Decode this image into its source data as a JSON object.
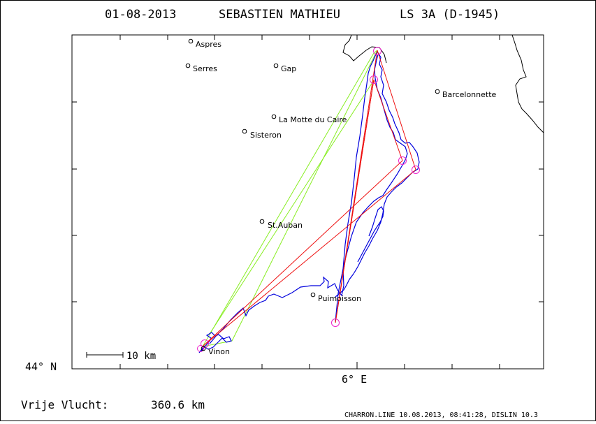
{
  "header": {
    "date": "01-08-2013",
    "pilot": "SEBASTIEN MATHIEU",
    "glider": "LS 3A (D-1945)"
  },
  "map": {
    "lat_label": "44° N",
    "lon_label": "6° E",
    "scale_label": "10 km",
    "towns": [
      {
        "name": "Aspres"
      },
      {
        "name": "Serres"
      },
      {
        "name": "Gap"
      },
      {
        "name": "Barcelonnette"
      },
      {
        "name": "La Motte du Caire"
      },
      {
        "name": "Sisteron"
      },
      {
        "name": "St.Auban"
      },
      {
        "name": "Puimoisson"
      },
      {
        "name": "Vinon"
      }
    ],
    "colors": {
      "track": "#0000dd",
      "task_leg": "#ee1111",
      "optimized_leg": "#88ee22",
      "turnpoint": "#ee22cc",
      "coast": "#000000"
    }
  },
  "footer": {
    "distance_label": "Vrije Vlucht:",
    "distance_value": "360.6 km",
    "software_info": "CHARRON.LINE 10.08.2013, 08:41:28, DISLIN 10.3"
  }
}
